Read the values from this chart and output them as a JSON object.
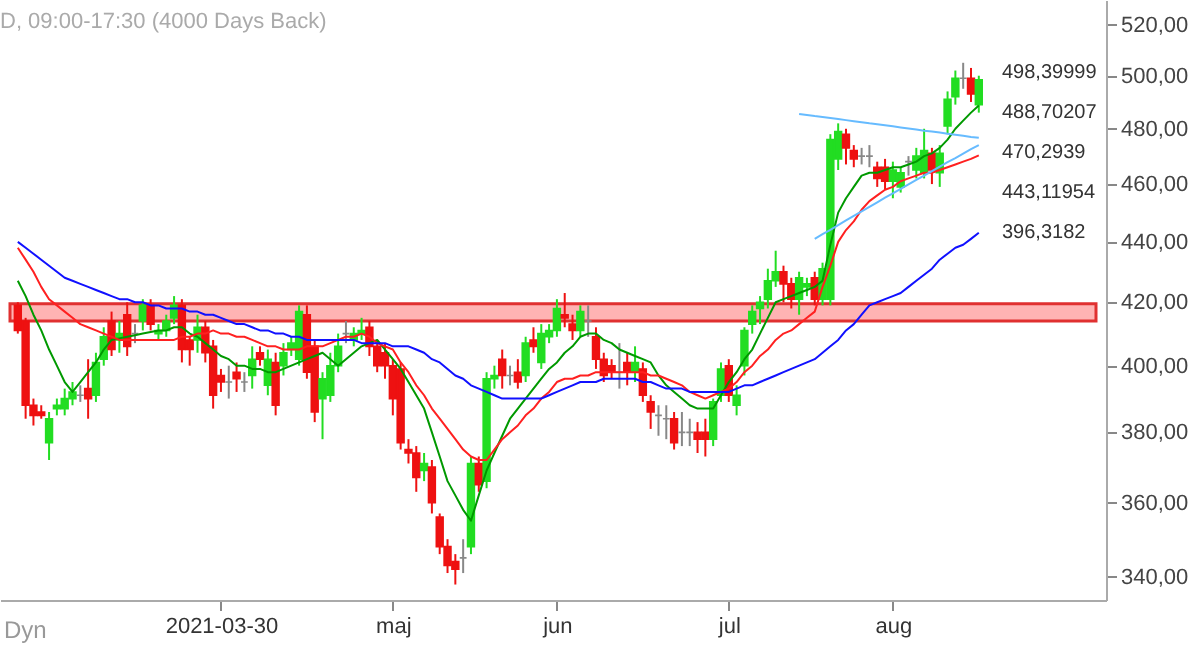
{
  "chart_data": {
    "type": "candlestick",
    "title": "D, 09:00-17:30 (4000 Days Back)",
    "categories": [
      null,
      null,
      null,
      null,
      null,
      null,
      null,
      null,
      null,
      null,
      null,
      null,
      null,
      null,
      null,
      null,
      null,
      null,
      null,
      null,
      null,
      null,
      null,
      null,
      null,
      null,
      "2021-03-30",
      null,
      null,
      null,
      null,
      null,
      null,
      null,
      null,
      null,
      null,
      null,
      null,
      null,
      null,
      null,
      null,
      null,
      null,
      null,
      null,
      null,
      "maj",
      null,
      null,
      null,
      null,
      null,
      null,
      null,
      null,
      null,
      null,
      null,
      null,
      null,
      null,
      null,
      null,
      null,
      null,
      null,
      null,
      "jun",
      null,
      null,
      null,
      null,
      null,
      null,
      null,
      null,
      null,
      null,
      null,
      null,
      null,
      null,
      null,
      null,
      null,
      null,
      null,
      null,
      null,
      "jul",
      null,
      null,
      null,
      null,
      null,
      null,
      null,
      null,
      null,
      null,
      null,
      null,
      null,
      null,
      null,
      null,
      null,
      null,
      null,
      null,
      "aug",
      null,
      null,
      null,
      null,
      null,
      null,
      null,
      null,
      null,
      null,
      null
    ],
    "ohlc": [
      [
        419,
        420,
        410,
        411
      ],
      [
        414,
        415,
        384,
        388
      ],
      [
        388,
        390,
        382,
        385
      ],
      [
        386,
        388,
        384,
        385
      ],
      [
        377,
        386,
        372,
        384
      ],
      [
        387,
        390,
        385,
        388
      ],
      [
        387,
        393,
        385,
        390
      ],
      [
        390,
        395,
        388,
        392
      ],
      [
        391,
        394,
        389,
        391
      ],
      [
        393,
        402,
        384,
        390
      ],
      [
        391,
        404,
        389,
        401
      ],
      [
        402,
        412,
        400,
        409
      ],
      [
        414,
        417,
        403,
        405
      ],
      [
        408,
        414,
        404,
        410
      ],
      [
        416,
        420,
        403,
        406
      ],
      [
        410,
        413,
        407,
        410
      ],
      [
        414,
        421,
        411,
        419
      ],
      [
        419,
        421,
        411,
        413
      ],
      [
        410,
        413,
        408,
        411
      ],
      [
        411,
        416,
        409,
        414
      ],
      [
        415,
        422,
        413,
        419
      ],
      [
        419,
        421,
        401,
        405
      ],
      [
        408,
        409,
        400,
        405
      ],
      [
        408,
        416,
        404,
        412
      ],
      [
        412,
        414,
        401,
        404
      ],
      [
        406,
        408,
        387,
        391
      ],
      [
        397,
        399,
        392,
        395
      ],
      [
        395,
        400,
        390,
        395
      ],
      [
        398,
        401,
        392,
        396
      ],
      [
        395,
        398,
        392,
        395
      ],
      [
        397,
        406,
        393,
        402
      ],
      [
        404,
        406,
        400,
        402
      ],
      [
        394,
        405,
        391,
        402
      ],
      [
        401,
        404,
        385,
        388
      ],
      [
        400,
        407,
        397,
        404
      ],
      [
        405,
        409,
        403,
        407
      ],
      [
        402,
        419,
        400,
        417
      ],
      [
        416,
        419,
        396,
        398
      ],
      [
        406,
        408,
        383,
        386
      ],
      [
        390,
        398,
        378,
        396
      ],
      [
        391,
        404,
        389,
        400
      ],
      [
        400,
        410,
        398,
        406
      ],
      [
        410,
        414,
        407,
        410
      ],
      [
        408,
        412,
        406,
        410
      ],
      [
        410,
        415,
        408,
        411
      ],
      [
        412,
        414,
        403,
        406
      ],
      [
        406,
        408,
        398,
        400
      ],
      [
        404,
        407,
        396,
        400
      ],
      [
        400,
        402,
        385,
        390
      ],
      [
        399,
        401,
        375,
        377
      ],
      [
        375,
        378,
        371,
        374
      ],
      [
        374,
        376,
        363,
        367
      ],
      [
        369,
        374,
        366,
        371
      ],
      [
        370,
        372,
        357,
        360
      ],
      [
        356,
        357,
        346,
        348
      ],
      [
        348,
        350,
        341,
        343
      ],
      [
        344,
        346,
        338,
        342
      ],
      [
        345,
        350,
        341,
        345
      ],
      [
        348,
        373,
        346,
        371
      ],
      [
        371,
        373,
        363,
        365
      ],
      [
        366,
        398,
        364,
        396
      ],
      [
        396,
        400,
        393,
        397
      ],
      [
        402,
        405,
        393,
        397
      ],
      [
        397,
        400,
        394,
        397
      ],
      [
        398,
        402,
        393,
        395
      ],
      [
        397,
        409,
        395,
        407
      ],
      [
        408,
        412,
        404,
        406
      ],
      [
        401,
        413,
        399,
        410
      ],
      [
        409,
        413,
        407,
        411
      ],
      [
        411,
        421,
        409,
        418
      ],
      [
        416,
        423,
        412,
        415
      ],
      [
        413,
        416,
        408,
        411
      ],
      [
        411,
        419,
        409,
        417
      ],
      [
        414,
        419,
        409,
        414
      ],
      [
        409,
        412,
        399,
        402
      ],
      [
        402,
        404,
        395,
        397
      ],
      [
        400,
        402,
        396,
        398
      ],
      [
        398,
        407,
        393,
        398
      ],
      [
        401,
        404,
        394,
        398
      ],
      [
        398,
        406,
        395,
        401
      ],
      [
        399,
        401,
        389,
        391
      ],
      [
        389,
        391,
        381,
        386
      ],
      [
        385,
        388,
        379,
        385
      ],
      [
        384,
        388,
        378,
        384
      ],
      [
        384,
        386,
        375,
        377
      ],
      [
        380,
        386,
        376,
        380
      ],
      [
        380,
        384,
        376,
        380
      ],
      [
        380,
        383,
        374,
        378
      ],
      [
        380,
        384,
        373,
        378
      ],
      [
        378,
        390,
        376,
        389
      ],
      [
        391,
        401,
        389,
        399
      ],
      [
        400,
        402,
        389,
        391
      ],
      [
        388,
        394,
        385,
        391
      ],
      [
        400,
        412,
        397,
        411
      ],
      [
        413,
        419,
        410,
        417
      ],
      [
        418,
        422,
        413,
        420
      ],
      [
        421,
        431,
        418,
        427
      ],
      [
        427,
        437,
        425,
        430
      ],
      [
        430,
        432,
        420,
        426
      ],
      [
        426,
        428,
        418,
        421
      ],
      [
        421,
        430,
        416,
        428
      ],
      [
        425,
        428,
        422,
        426
      ],
      [
        428,
        430,
        419,
        421
      ],
      [
        421,
        433,
        419,
        431
      ],
      [
        421,
        478,
        419,
        476
      ],
      [
        469,
        482,
        465,
        479
      ],
      [
        478,
        480,
        467,
        473
      ],
      [
        472,
        474,
        466,
        469
      ],
      [
        470,
        473,
        467,
        470
      ],
      [
        470,
        474,
        466,
        470
      ],
      [
        466,
        468,
        459,
        462
      ],
      [
        466,
        469,
        458,
        461
      ],
      [
        461,
        468,
        455,
        465
      ],
      [
        459,
        466,
        457,
        464
      ],
      [
        468,
        470,
        463,
        468
      ],
      [
        465,
        473,
        462,
        470
      ],
      [
        464,
        480,
        462,
        472
      ],
      [
        471,
        473,
        460,
        465
      ],
      [
        464,
        474,
        459,
        471
      ],
      [
        481,
        494,
        478,
        491
      ],
      [
        492,
        502,
        489,
        499
      ],
      [
        499,
        505,
        495,
        499
      ],
      [
        499,
        503,
        490,
        493
      ],
      [
        489,
        500,
        486,
        498.4
      ]
    ],
    "colors": [
      "#ee1111",
      "#ee1111",
      "#ee1111",
      "#ee1111",
      "#22dd22",
      "#22dd22",
      "#22dd22",
      "#22dd22",
      "#888888",
      "#ee1111",
      "#22dd22",
      "#22dd22",
      "#ee1111",
      "#22dd22",
      "#ee1111",
      "#888888",
      "#22dd22",
      "#ee1111",
      "#22dd22",
      "#22dd22",
      "#22dd22",
      "#ee1111",
      "#ee1111",
      "#22dd22",
      "#ee1111",
      "#ee1111",
      "#ee1111",
      "#888888",
      "#ee1111",
      "#888888",
      "#22dd22",
      "#ee1111",
      "#22dd22",
      "#ee1111",
      "#22dd22",
      "#22dd22",
      "#22dd22",
      "#ee1111",
      "#ee1111",
      "#22dd22",
      "#22dd22",
      "#22dd22",
      "#888888",
      "#22dd22",
      "#22dd22",
      "#ee1111",
      "#ee1111",
      "#ee1111",
      "#ee1111",
      "#ee1111",
      "#ee1111",
      "#ee1111",
      "#22dd22",
      "#ee1111",
      "#ee1111",
      "#ee1111",
      "#ee1111",
      "#888888",
      "#22dd22",
      "#ee1111",
      "#22dd22",
      "#22dd22",
      "#ee1111",
      "#888888",
      "#ee1111",
      "#22dd22",
      "#ee1111",
      "#22dd22",
      "#22dd22",
      "#22dd22",
      "#ee1111",
      "#ee1111",
      "#22dd22",
      "#888888",
      "#ee1111",
      "#ee1111",
      "#ee1111",
      "#888888",
      "#ee1111",
      "#22dd22",
      "#ee1111",
      "#ee1111",
      "#888888",
      "#888888",
      "#ee1111",
      "#888888",
      "#888888",
      "#ee1111",
      "#ee1111",
      "#22dd22",
      "#22dd22",
      "#ee1111",
      "#22dd22",
      "#22dd22",
      "#22dd22",
      "#22dd22",
      "#22dd22",
      "#22dd22",
      "#ee1111",
      "#ee1111",
      "#22dd22",
      "#22dd22",
      "#ee1111",
      "#22dd22",
      "#22dd22",
      "#22dd22",
      "#ee1111",
      "#ee1111",
      "#888888",
      "#888888",
      "#ee1111",
      "#ee1111",
      "#22dd22",
      "#22dd22",
      "#888888",
      "#22dd22",
      "#22dd22",
      "#ee1111",
      "#22dd22",
      "#22dd22",
      "#22dd22",
      "#888888",
      "#ee1111",
      "#22dd22"
    ],
    "series": [
      {
        "type": "line",
        "color": "#009900",
        "values": [
          427,
          422,
          416,
          411,
          405,
          400,
          395,
          392,
          395,
          398,
          401,
          405,
          408,
          408.5,
          409,
          409.5,
          410,
          410.5,
          411,
          411,
          412,
          412,
          410,
          409,
          407,
          405,
          403,
          402,
          400,
          400,
          399,
          399,
          398,
          398,
          399,
          400,
          401,
          402,
          403,
          404,
          402,
          400,
          402,
          404,
          406,
          407,
          408,
          405,
          402,
          399,
          395,
          391,
          387,
          380,
          373,
          366,
          362,
          358,
          355,
          362,
          369,
          374,
          379,
          384,
          387,
          390,
          393,
          396,
          399,
          401,
          404,
          406,
          409,
          410,
          410,
          408,
          407,
          405,
          404,
          403,
          402,
          401,
          397,
          394,
          392,
          390,
          388,
          387,
          387,
          387,
          391,
          395,
          398,
          402,
          405,
          410,
          415,
          420,
          421,
          422,
          423,
          424,
          425,
          427,
          439,
          450,
          455,
          459,
          463,
          464,
          464,
          465,
          466,
          466,
          467,
          468,
          470,
          471,
          473,
          476,
          480,
          483,
          486,
          488.7
        ]
      },
      {
        "type": "line",
        "color": "#ff2020",
        "values": [
          438,
          434,
          430,
          425,
          421,
          419,
          417,
          415,
          413,
          412,
          411,
          410,
          409,
          408,
          408,
          408,
          408,
          408,
          408,
          408,
          408,
          409,
          409,
          410,
          410,
          411,
          410,
          410,
          409,
          409,
          408,
          407,
          406,
          406,
          405,
          405,
          405,
          406,
          406,
          406,
          407,
          408,
          409,
          409,
          410,
          409,
          407,
          406,
          405,
          401,
          398,
          394,
          391,
          387,
          384,
          381,
          378,
          375,
          373,
          372,
          372,
          375,
          378,
          380,
          382,
          385,
          387,
          390,
          392,
          395,
          396,
          396,
          397,
          397,
          398,
          398,
          398,
          398,
          398,
          398,
          398,
          397,
          397,
          396,
          395,
          394,
          392,
          391,
          390,
          391,
          392,
          393,
          395,
          398,
          400,
          403,
          405,
          408,
          410,
          411,
          413,
          415,
          417,
          425,
          432,
          440,
          444,
          447,
          451,
          454,
          456,
          458,
          459,
          461,
          462,
          463,
          464,
          464,
          465,
          466,
          467,
          468,
          469,
          470.3
        ]
      },
      {
        "type": "line",
        "color": "#1010ff",
        "values": [
          440,
          438,
          436,
          434,
          432,
          430,
          428,
          427,
          426,
          425,
          424,
          423,
          422,
          421,
          421,
          420,
          420,
          419,
          419,
          418,
          418,
          418,
          417,
          417,
          416,
          416,
          415,
          414,
          413,
          413,
          412,
          411,
          411,
          410,
          410,
          409,
          409,
          408,
          408,
          408,
          408,
          408,
          408,
          408,
          407,
          407,
          407,
          407,
          406,
          406,
          406,
          405,
          404,
          402,
          401,
          399,
          397,
          396,
          394,
          393,
          392,
          391,
          390,
          390,
          390,
          390,
          390,
          390,
          391,
          392,
          393,
          394,
          395,
          395,
          395,
          396,
          396,
          396,
          396,
          396,
          395,
          395,
          394,
          393,
          393,
          393,
          392,
          392,
          392,
          392,
          392,
          392,
          393,
          394,
          394,
          395,
          396,
          397,
          398,
          399,
          400,
          401,
          402,
          404,
          406,
          408,
          411,
          413,
          416,
          419,
          420,
          421,
          422,
          423,
          425,
          427,
          429,
          431,
          434,
          436,
          438,
          439,
          441,
          443.1
        ]
      },
      {
        "type": "line",
        "color": "#66bbff",
        "values": [
          null,
          null,
          null,
          null,
          null,
          null,
          null,
          null,
          null,
          null,
          null,
          null,
          null,
          null,
          null,
          null,
          null,
          null,
          null,
          null,
          null,
          null,
          null,
          null,
          null,
          null,
          null,
          null,
          null,
          null,
          null,
          null,
          null,
          null,
          null,
          null,
          null,
          null,
          null,
          null,
          null,
          null,
          null,
          null,
          null,
          null,
          null,
          null,
          null,
          null,
          null,
          null,
          null,
          null,
          null,
          null,
          null,
          null,
          null,
          null,
          null,
          null,
          null,
          null,
          null,
          null,
          null,
          null,
          null,
          null,
          null,
          null,
          null,
          null,
          null,
          null,
          null,
          null,
          null,
          null,
          null,
          null,
          null,
          null,
          null,
          null,
          null,
          null,
          null,
          null,
          null,
          null,
          null,
          null,
          null,
          null,
          null,
          null,
          null,
          null,
          485.5,
          485.1,
          484.7,
          484.4,
          484.0,
          483.6,
          483.2,
          482.8,
          482.4,
          482.0,
          481.7,
          481.3,
          480.9,
          480.5,
          480.1,
          479.7,
          479.3,
          479.0,
          478.6,
          478.2,
          477.8,
          477.4,
          477.0,
          476.7
        ]
      },
      {
        "type": "line",
        "color": "#66bbff",
        "values": [
          null,
          null,
          null,
          null,
          null,
          null,
          null,
          null,
          null,
          null,
          null,
          null,
          null,
          null,
          null,
          null,
          null,
          null,
          null,
          null,
          null,
          null,
          null,
          null,
          null,
          null,
          null,
          null,
          null,
          null,
          null,
          null,
          null,
          null,
          null,
          null,
          null,
          null,
          null,
          null,
          null,
          null,
          null,
          null,
          null,
          null,
          null,
          null,
          null,
          null,
          null,
          null,
          null,
          null,
          null,
          null,
          null,
          null,
          null,
          null,
          null,
          null,
          null,
          null,
          null,
          null,
          null,
          null,
          null,
          null,
          null,
          null,
          null,
          null,
          null,
          null,
          null,
          null,
          null,
          null,
          null,
          null,
          null,
          null,
          null,
          null,
          null,
          null,
          null,
          null,
          null,
          null,
          null,
          null,
          null,
          null,
          null,
          null,
          null,
          null,
          null,
          null,
          441,
          442.6,
          444.1,
          445.7,
          447.3,
          448.9,
          450.4,
          452,
          453.6,
          455.2,
          456.7,
          458.3,
          459.9,
          461.5,
          463,
          464.6,
          466.2,
          467.8,
          469.3,
          470.9,
          472.5,
          474
        ]
      }
    ],
    "bands": [
      {
        "axis": "y",
        "from": 414,
        "to": 419.5,
        "color": "#ffb3b3"
      }
    ],
    "annotations": [
      "Dyn",
      "498,39999",
      "488,70207",
      "470,2939",
      "443,11954",
      "396,3182"
    ],
    "log": true,
    "ylim": [
      334,
      530
    ],
    "yticks": [
      {
        "value": 340,
        "label": "340,00"
      },
      {
        "value": 360,
        "label": "360,00"
      },
      {
        "value": 380,
        "label": "380,00"
      },
      {
        "value": 400,
        "label": "400,00"
      },
      {
        "value": 420,
        "label": "420,00"
      },
      {
        "value": 440,
        "label": "440,00"
      },
      {
        "value": 460,
        "label": "460,00"
      },
      {
        "value": 480,
        "label": "480,00"
      },
      {
        "value": 500,
        "label": "500,00"
      },
      {
        "value": 520,
        "label": "520,00"
      }
    ]
  }
}
